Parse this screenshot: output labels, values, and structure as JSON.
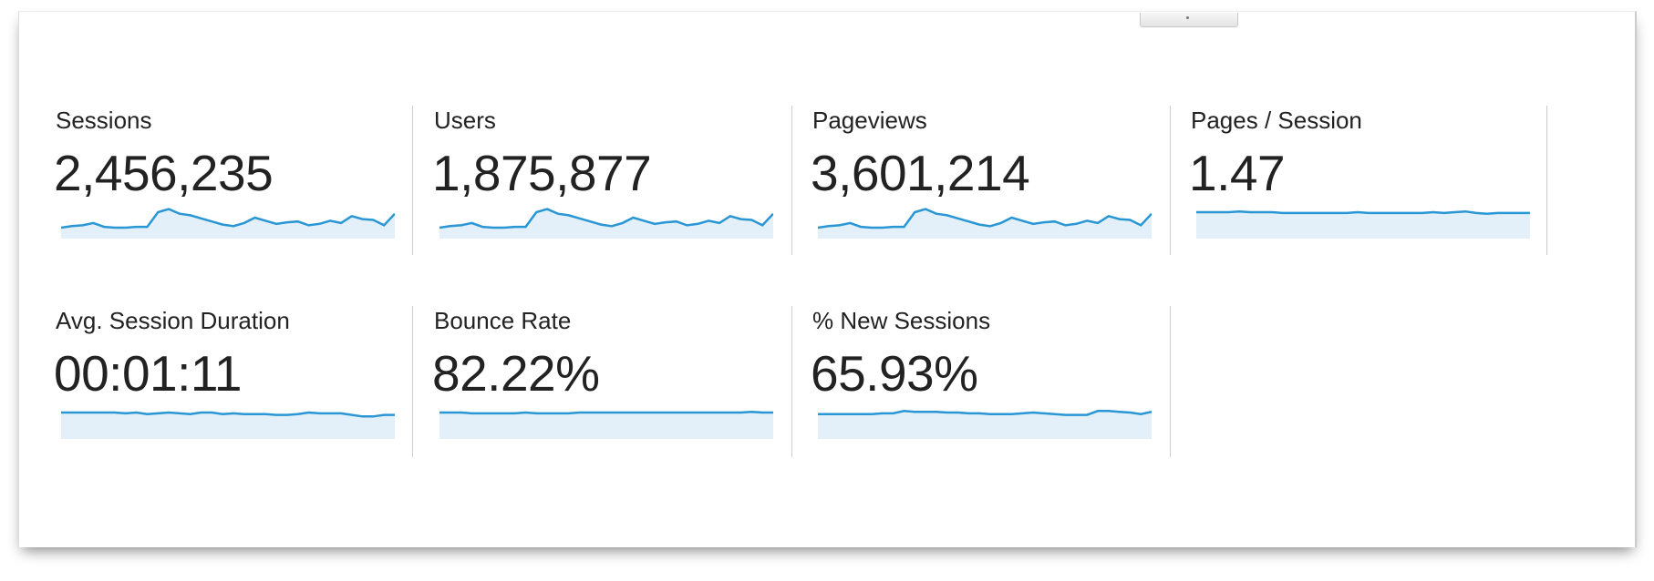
{
  "accent_color": "#2a96d4",
  "fill_color": "#e3f0fa",
  "top_button": {
    "icon": "chevron-down-icon"
  },
  "metrics": [
    {
      "label": "Sessions",
      "value": "2,456,235",
      "sparkline": [
        30,
        32,
        33,
        36,
        31,
        30,
        30,
        31,
        31,
        50,
        54,
        48,
        46,
        42,
        38,
        34,
        32,
        36,
        43,
        39,
        35,
        37,
        38,
        33,
        35,
        39,
        36,
        45,
        41,
        40,
        33,
        48
      ]
    },
    {
      "label": "Users",
      "value": "1,875,877",
      "sparkline": [
        30,
        32,
        33,
        36,
        31,
        30,
        30,
        31,
        31,
        50,
        54,
        48,
        46,
        42,
        38,
        34,
        32,
        36,
        43,
        39,
        35,
        37,
        38,
        33,
        35,
        39,
        36,
        45,
        41,
        40,
        33,
        48
      ]
    },
    {
      "label": "Pageviews",
      "value": "3,601,214",
      "sparkline": [
        30,
        32,
        33,
        36,
        31,
        30,
        30,
        31,
        31,
        50,
        54,
        48,
        46,
        42,
        38,
        34,
        32,
        36,
        43,
        39,
        35,
        37,
        38,
        33,
        35,
        39,
        36,
        45,
        41,
        40,
        33,
        48
      ]
    },
    {
      "label": "Pages / Session",
      "value": "1.47",
      "sparkline": [
        50,
        50,
        50,
        50,
        51,
        50,
        50,
        50,
        49,
        49,
        49,
        49,
        49,
        49,
        49,
        50,
        49,
        49,
        49,
        49,
        49,
        49,
        50,
        49,
        50,
        51,
        49,
        48,
        49,
        49,
        49,
        49
      ]
    },
    {
      "label": "Avg. Session Duration",
      "value": "00:01:11",
      "sparkline": [
        50,
        50,
        50,
        50,
        50,
        50,
        49,
        50,
        48,
        49,
        50,
        49,
        48,
        50,
        50,
        48,
        49,
        48,
        48,
        48,
        47,
        47,
        48,
        50,
        49,
        49,
        49,
        47,
        45,
        45,
        47,
        47
      ]
    },
    {
      "label": "Bounce Rate",
      "value": "82.22%",
      "sparkline": [
        50,
        50,
        50,
        49,
        49,
        49,
        49,
        49,
        50,
        49,
        49,
        49,
        49,
        50,
        50,
        50,
        50,
        50,
        50,
        50,
        50,
        50,
        50,
        50,
        50,
        50,
        50,
        50,
        50,
        51,
        50,
        50
      ]
    },
    {
      "label": "% New Sessions",
      "value": "65.93%",
      "sparkline": [
        48,
        48,
        48,
        48,
        48,
        48,
        49,
        49,
        52,
        51,
        51,
        51,
        50,
        50,
        49,
        49,
        48,
        48,
        48,
        49,
        50,
        49,
        48,
        47,
        47,
        47,
        52,
        52,
        51,
        50,
        48,
        51
      ]
    }
  ]
}
